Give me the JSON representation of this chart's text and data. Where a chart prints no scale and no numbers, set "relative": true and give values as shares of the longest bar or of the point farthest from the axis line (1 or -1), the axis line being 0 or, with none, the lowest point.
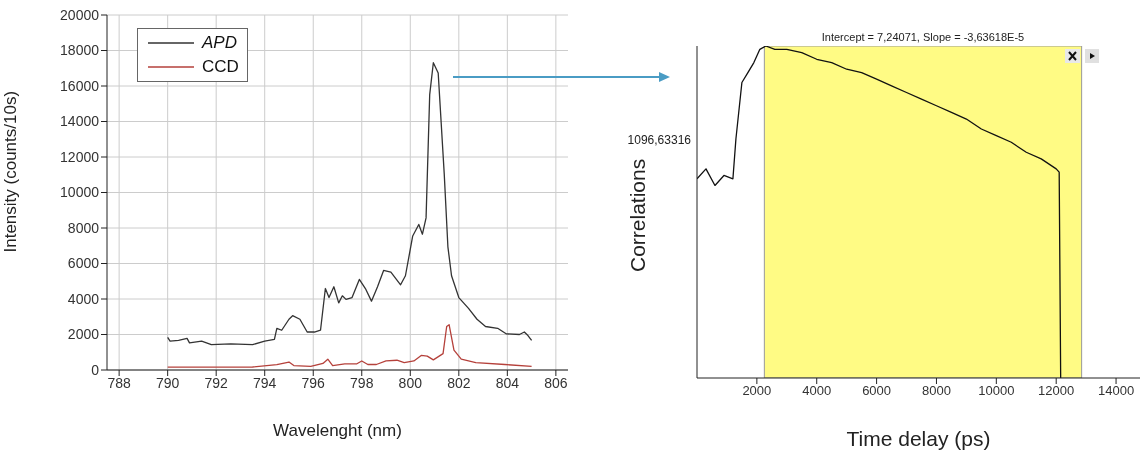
{
  "chart_data": [
    {
      "type": "line",
      "xlabel": "Wavelenght (nm)",
      "ylabel": "Intensity (counts/10s)",
      "xlim": [
        787.5,
        806.5
      ],
      "xticks": [
        788,
        790,
        792,
        794,
        796,
        798,
        800,
        802,
        804,
        806
      ],
      "ylim": [
        0,
        20000
      ],
      "yticks": [
        0,
        2000,
        4000,
        6000,
        8000,
        10000,
        12000,
        14000,
        16000,
        18000,
        20000
      ],
      "grid": true,
      "legend": "top left",
      "series": [
        {
          "name": "APD",
          "color": "#333333",
          "x": [
            790,
            790.1,
            790.45,
            790.8,
            790.9,
            791.4,
            791.8,
            792.6,
            793.5,
            794,
            794.4,
            794.5,
            794.7,
            795,
            795.15,
            795.45,
            795.75,
            796.05,
            796.3,
            796.5,
            796.65,
            796.85,
            797.05,
            797.2,
            797.35,
            797.6,
            797.9,
            798.15,
            798.4,
            798.65,
            798.9,
            799.2,
            799.6,
            799.8,
            800.1,
            800.35,
            800.5,
            800.65,
            800.8,
            800.95,
            801.15,
            801.4,
            801.55,
            801.7,
            802,
            802.4,
            802.75,
            803.1,
            803.6,
            803.95,
            804.5,
            804.7,
            804.85,
            805
          ],
          "values": [
            1840,
            1630,
            1670,
            1780,
            1530,
            1630,
            1430,
            1470,
            1430,
            1630,
            1730,
            2350,
            2240,
            2860,
            3060,
            2860,
            2140,
            2140,
            2240,
            4590,
            4080,
            4690,
            3780,
            4180,
            3980,
            4080,
            5100,
            4590,
            3880,
            4690,
            5610,
            5510,
            4800,
            5310,
            7550,
            8200,
            7650,
            8570,
            15510,
            17310,
            16730,
            11020,
            6940,
            5310,
            4080,
            3470,
            2860,
            2450,
            2350,
            2040,
            2000,
            2140,
            1940,
            1670
          ]
        },
        {
          "name": "CCD",
          "color": "#b5413b",
          "x": [
            790,
            793.5,
            794.5,
            795,
            795.2,
            795.9,
            796.4,
            796.6,
            796.8,
            797.3,
            797.8,
            798,
            798.25,
            798.6,
            799,
            799.45,
            799.75,
            800.15,
            800.45,
            800.7,
            800.95,
            801.35,
            801.5,
            801.6,
            801.8,
            802.1,
            802.7,
            803.9,
            805
          ],
          "values": [
            160,
            170,
            300,
            450,
            250,
            200,
            370,
            610,
            250,
            350,
            350,
            510,
            310,
            310,
            510,
            550,
            410,
            510,
            820,
            780,
            570,
            920,
            2450,
            2550,
            1120,
            610,
            410,
            310,
            200
          ]
        }
      ]
    },
    {
      "type": "line",
      "relative": true,
      "xlabel": "Time delay (ps)",
      "ylabel": "Correlations",
      "xlim": [
        0,
        14800
      ],
      "xticks": [
        2000,
        4000,
        6000,
        8000,
        10000,
        12000,
        14000
      ],
      "annotations": [
        "1096,63316"
      ],
      "bands": [
        {
          "axis": "x",
          "from": 2250,
          "to": 12850,
          "label": "Intercept = 7,24071, Slope = -3,63618E-5",
          "color": "#fffb84"
        }
      ],
      "series": [
        {
          "color": "#111111",
          "x": [
            0,
            300,
            600,
            900,
            1200,
            1300,
            1500,
            1700,
            1900,
            2100,
            2300,
            2600,
            3000,
            3500,
            4000,
            4500,
            5000,
            5500,
            6000,
            6500,
            7000,
            7500,
            8000,
            8500,
            9000,
            9500,
            10000,
            10500,
            11000,
            11500,
            12000,
            12100,
            12150
          ],
          "values": [
            0.6,
            0.63,
            0.58,
            0.61,
            0.6,
            0.72,
            0.89,
            0.92,
            0.95,
            0.99,
            1,
            0.99,
            0.99,
            0.98,
            0.96,
            0.95,
            0.93,
            0.92,
            0.9,
            0.88,
            0.86,
            0.84,
            0.82,
            0.8,
            0.78,
            0.75,
            0.73,
            0.71,
            0.68,
            0.66,
            0.63,
            0.62,
            0
          ]
        }
      ]
    }
  ]
}
